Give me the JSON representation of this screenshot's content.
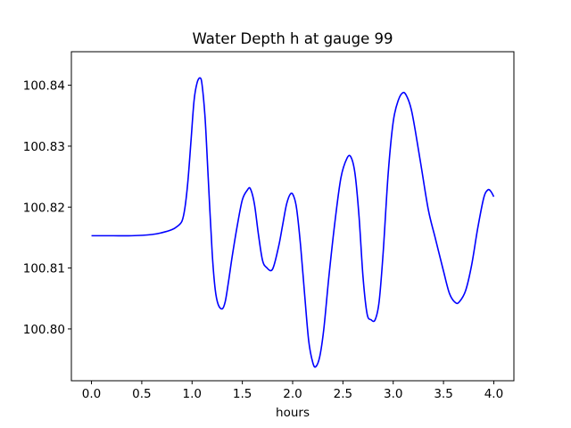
{
  "chart_data": {
    "type": "line",
    "title": "Water Depth h at gauge 99",
    "xlabel": "hours",
    "ylabel": "",
    "xlim": [
      -0.2,
      4.2
    ],
    "ylim": [
      100.7915,
      100.8455
    ],
    "xticks": [
      0.0,
      0.5,
      1.0,
      1.5,
      2.0,
      2.5,
      3.0,
      3.5,
      4.0
    ],
    "xtick_labels": [
      "0.0",
      "0.5",
      "1.0",
      "1.5",
      "2.0",
      "2.5",
      "3.0",
      "3.5",
      "4.0"
    ],
    "yticks": [
      100.8,
      100.81,
      100.82,
      100.83,
      100.84
    ],
    "ytick_labels": [
      "100.80",
      "100.81",
      "100.82",
      "100.83",
      "100.84"
    ],
    "grid": false,
    "series": [
      {
        "color": "#0000ff",
        "x": [
          0.0,
          0.2,
          0.4,
          0.6,
          0.7,
          0.8,
          0.85,
          0.9,
          0.93,
          0.96,
          0.99,
          1.02,
          1.05,
          1.08,
          1.1,
          1.13,
          1.16,
          1.2,
          1.23,
          1.26,
          1.3,
          1.33,
          1.36,
          1.4,
          1.45,
          1.5,
          1.55,
          1.58,
          1.62,
          1.66,
          1.7,
          1.74,
          1.8,
          1.86,
          1.9,
          1.94,
          1.98,
          2.01,
          2.04,
          2.08,
          2.12,
          2.16,
          2.2,
          2.23,
          2.27,
          2.31,
          2.36,
          2.42,
          2.48,
          2.54,
          2.58,
          2.62,
          2.66,
          2.7,
          2.74,
          2.78,
          2.82,
          2.86,
          2.9,
          2.95,
          3.0,
          3.05,
          3.1,
          3.14,
          3.18,
          3.22,
          3.28,
          3.35,
          3.42,
          3.5,
          3.56,
          3.62,
          3.66,
          3.72,
          3.78,
          3.84,
          3.9,
          3.94,
          3.97,
          4.0
        ],
        "y": [
          100.8153,
          100.8153,
          100.8153,
          100.8155,
          100.8158,
          100.8163,
          100.8168,
          100.8177,
          100.82,
          100.8245,
          100.831,
          100.8375,
          100.8404,
          100.8412,
          100.84,
          100.8345,
          100.825,
          100.8125,
          100.8065,
          100.804,
          100.8033,
          100.8045,
          100.8075,
          100.812,
          100.817,
          100.8212,
          100.8228,
          100.823,
          100.8205,
          100.8155,
          100.8113,
          100.8101,
          100.8098,
          100.8135,
          100.817,
          100.8205,
          100.8222,
          100.8218,
          100.8197,
          100.8135,
          100.8055,
          100.798,
          100.7945,
          100.7938,
          100.7955,
          100.8,
          100.8085,
          100.8175,
          100.8248,
          100.828,
          100.8282,
          100.8255,
          100.8185,
          100.8085,
          100.8025,
          100.8015,
          100.8015,
          100.8045,
          100.8125,
          100.8255,
          100.834,
          100.8375,
          100.8388,
          100.838,
          100.836,
          100.8325,
          100.8265,
          100.8195,
          100.8148,
          100.8095,
          100.8058,
          100.8043,
          100.8045,
          100.8063,
          100.8105,
          100.8165,
          100.8215,
          100.8228,
          100.8226,
          100.8217
        ]
      }
    ]
  }
}
